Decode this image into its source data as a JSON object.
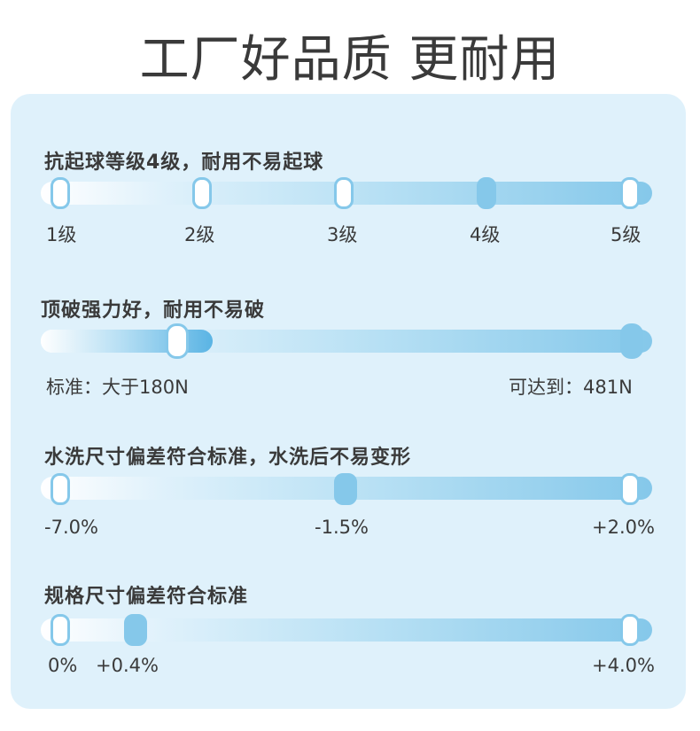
{
  "title": "工厂好品质 更耐用",
  "sections": {
    "pilling": {
      "heading": "抗起球等级4级，耐用不易起球",
      "levels": [
        "1级",
        "2级",
        "3级",
        "4级",
        "5级"
      ],
      "value": "4级"
    },
    "strength": {
      "heading": "顶破强力好，耐用不易破",
      "standard_label": "标准：大于180N",
      "max_label": "可达到：481N"
    },
    "washing": {
      "heading": "水洗尺寸偏差符合标准，水洗后不易变形",
      "min_label": "-7.0%",
      "value_label": "-1.5%",
      "max_label": "+2.0%"
    },
    "spec": {
      "heading": "规格尺寸偏差符合标准",
      "min_label": "0%",
      "value_label": "+0.4%",
      "max_label": "+4.0%"
    }
  }
}
